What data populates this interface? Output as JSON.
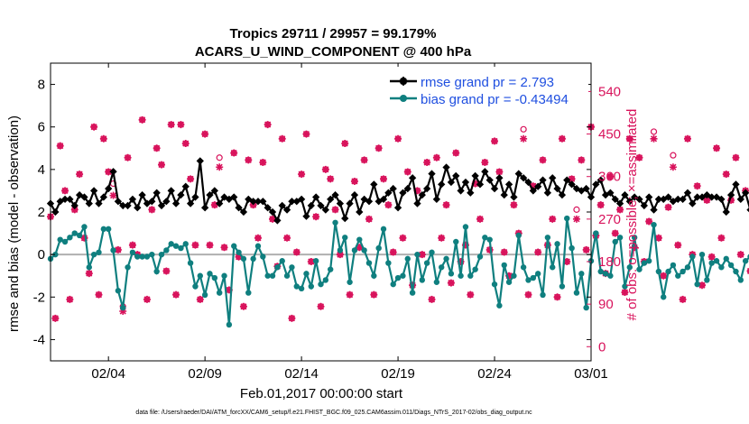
{
  "title_line1": "Tropics 29711 / 29957 = 99.179%",
  "title_line2": "ACARS_U_WIND_COMPONENT @ 400 hPa",
  "xlabel": "Feb.01,2017 00:00:00 start",
  "ylabel_left": "rmse and bias (model - observation)",
  "ylabel_right": "# of obs: o=possible; ×=assimilated",
  "footer": "data file: /Users/raeder/DAI/ATM_forcXX/CAM6_setup/f.e21.FHIST_BGC.f09_025.CAM6assim.011/Diags_NTrS_2017-02/obs_diag_output.nc",
  "legend": {
    "rmse_label": "rmse grand pr = 2.793",
    "bias_label": "bias grand pr = -0.43494"
  },
  "colors": {
    "rmse": "#000000",
    "bias": "#0f7f7f",
    "obs": "#d8125b",
    "legend_text": "#1f4fe0",
    "zero_line": "#b0b0b0"
  },
  "chart_data": {
    "type": "line",
    "x_start_day": 1,
    "x_end_day": 29,
    "x_step_days": 0.25,
    "xticks": [
      {
        "day": 4,
        "label": "02/04"
      },
      {
        "day": 9,
        "label": "02/09"
      },
      {
        "day": 14,
        "label": "02/14"
      },
      {
        "day": 19,
        "label": "02/19"
      },
      {
        "day": 24,
        "label": "02/24"
      },
      {
        "day": 29,
        "label": "03/01"
      }
    ],
    "ylim_left": [
      -5,
      9
    ],
    "yticks_left": [
      -4,
      -2,
      0,
      2,
      4,
      6,
      8
    ],
    "ylim_right": [
      -30,
      600
    ],
    "yticks_right": [
      0,
      90,
      180,
      270,
      360,
      450,
      540
    ],
    "series": [
      {
        "name": "rmse",
        "axis": "left",
        "values": [
          2.4,
          2.0,
          2.5,
          2.6,
          2.6,
          2.3,
          2.8,
          2.7,
          2.4,
          3.0,
          2.4,
          2.7,
          3.1,
          3.9,
          2.5,
          2.3,
          2.3,
          2.6,
          2.2,
          2.8,
          2.4,
          2.5,
          2.9,
          2.3,
          2.5,
          3.0,
          2.4,
          2.8,
          3.2,
          2.4,
          2.7,
          4.4,
          2.2,
          2.8,
          3.0,
          2.4,
          2.7,
          2.6,
          2.7,
          2.2,
          2.0,
          2.6,
          2.5,
          2.5,
          2.5,
          2.2,
          2.0,
          1.6,
          2.3,
          2.1,
          2.5,
          2.5,
          2.6,
          1.8,
          2.3,
          2.7,
          2.3,
          2.1,
          2.6,
          2.8,
          2.4,
          1.7,
          2.4,
          2.8,
          2.0,
          2.6,
          2.5,
          3.3,
          2.5,
          2.6,
          2.9,
          3.1,
          2.2,
          2.9,
          3.1,
          3.6,
          2.4,
          2.8,
          3.1,
          3.8,
          2.6,
          3.3,
          4.1,
          3.4,
          3.7,
          3.0,
          3.4,
          2.9,
          3.7,
          3.3,
          3.9,
          3.5,
          3.1,
          3.6,
          2.8,
          3.3,
          2.7,
          3.8,
          3.6,
          3.4,
          3.0,
          3.2,
          3.5,
          2.9,
          3.6,
          3.1,
          2.8,
          3.5,
          3.3,
          3.1,
          3.0,
          3.1,
          2.7,
          3.3,
          3.5,
          2.8,
          2.9,
          2.6,
          2.4,
          2.8,
          2.5,
          2.7,
          2.6,
          2.3,
          2.7,
          2.1,
          2.6,
          2.6,
          2.7,
          2.5,
          2.6,
          2.6,
          2.9,
          2.4,
          2.7,
          2.7,
          2.8,
          2.7,
          2.7,
          2.6,
          2.0,
          2.8,
          3.3,
          2.6,
          2.9,
          2.1,
          2.6,
          2.8,
          2.5,
          2.2,
          2.1
        ]
      },
      {
        "name": "bias",
        "axis": "left",
        "values": [
          -0.2,
          0.0,
          0.7,
          0.6,
          0.8,
          1.0,
          0.9,
          1.3,
          -0.6,
          0.0,
          0.1,
          1.2,
          1.2,
          0.2,
          -1.7,
          -2.5,
          -0.6,
          0.1,
          -0.1,
          -0.1,
          -0.1,
          0.0,
          -0.8,
          0.0,
          0.2,
          0.5,
          0.4,
          0.3,
          0.5,
          -0.4,
          -1.5,
          -1.0,
          -1.9,
          -0.9,
          -1.1,
          -1.8,
          -1.0,
          -3.3,
          0.4,
          0.1,
          -0.2,
          -1.8,
          -0.2,
          0.4,
          -0.1,
          -1.0,
          -1.0,
          -0.6,
          -0.3,
          -1.0,
          -0.6,
          -1.5,
          -1.6,
          -0.9,
          -1.5,
          -0.3,
          -1.4,
          -1.2,
          -0.7,
          1.5,
          0.2,
          0.8,
          -1.3,
          0.2,
          0.7,
          0.2,
          -0.4,
          -1.0,
          0.3,
          1.2,
          -0.4,
          -1.4,
          -1.1,
          -1.0,
          -0.2,
          -1.8,
          0.0,
          -1.2,
          -0.4,
          0.1,
          -1.3,
          -0.6,
          -0.2,
          -0.9,
          0.6,
          -1.0,
          1.3,
          -1.0,
          -0.7,
          -0.1,
          0.8,
          0.7,
          -1.4,
          -2.4,
          -0.5,
          -1.3,
          -1.0,
          0.9,
          -0.6,
          -1.2,
          -1.1,
          -0.9,
          -1.9,
          0.8,
          -0.6,
          0.5,
          -1.5,
          1.7,
          0.3,
          -1.8,
          -0.9,
          -2.5,
          -0.3,
          1.0,
          -0.8,
          -0.9,
          -1.0,
          0.6,
          0.8,
          -1.5,
          -0.6,
          0.8,
          -0.7,
          -0.4,
          -0.3,
          1.4,
          -0.8,
          -2.0,
          -0.8,
          -0.5,
          -1.0,
          -0.8,
          -0.6,
          -0.1,
          -1.4,
          0.0,
          -1.2,
          -0.4,
          -0.3,
          -0.6,
          -0.2,
          -0.5,
          -0.8,
          -1.2,
          -0.3,
          -0.1,
          0.5,
          -0.3,
          -0.9,
          -2.0,
          0.3,
          0.4
        ]
      },
      {
        "name": "obs_possible",
        "axis": "right",
        "values": [
          275,
          60,
          425,
          330,
          100,
          290,
          365,
          230,
          155,
          465,
          110,
          440,
          370,
          345,
          205,
          85,
          400,
          215,
          195,
          480,
          100,
          290,
          420,
          385,
          160,
          470,
          110,
          470,
          430,
          355,
          215,
          100,
          450,
          215,
          300,
          400,
          210,
          120,
          410,
          190,
          85,
          395,
          300,
          230,
          390,
          470,
          270,
          170,
          440,
          230,
          60,
          200,
          365,
          450,
          180,
          275,
          85,
          375,
          355,
          290,
          195,
          430,
          110,
          350,
          210,
          395,
          270,
          110,
          420,
          355,
          300,
          200,
          440,
          230,
          370,
          130,
          330,
          195,
          390,
          100,
          400,
          230,
          300,
          135,
          410,
          180,
          215,
          110,
          345,
          270,
          390,
          205,
          435,
          370,
          200,
          150,
          300,
          240,
          460,
          110,
          340,
          200,
          395,
          215,
          270,
          105,
          440,
          180,
          355,
          290,
          395,
          205,
          465,
          235,
          300,
          155,
          360,
          240,
          290,
          115,
          440,
          210,
          400,
          180,
          265,
          455,
          230,
          150,
          295,
          405,
          215,
          100,
          440,
          195,
          340,
          130,
          310,
          190,
          420,
          230,
          365,
          310,
          400,
          195,
          330,
          160,
          340,
          90,
          0,
          450
        ]
      },
      {
        "name": "obs_assimilated",
        "axis": "right",
        "values": [
          275,
          60,
          425,
          330,
          100,
          290,
          365,
          230,
          155,
          465,
          110,
          440,
          370,
          320,
          205,
          75,
          400,
          215,
          195,
          480,
          100,
          290,
          420,
          385,
          160,
          470,
          110,
          470,
          430,
          355,
          215,
          100,
          450,
          215,
          300,
          380,
          210,
          120,
          410,
          190,
          85,
          395,
          300,
          230,
          390,
          470,
          270,
          170,
          440,
          230,
          60,
          200,
          365,
          450,
          180,
          275,
          85,
          375,
          355,
          290,
          195,
          430,
          110,
          350,
          210,
          395,
          270,
          110,
          420,
          355,
          300,
          200,
          440,
          230,
          370,
          130,
          330,
          195,
          390,
          100,
          400,
          230,
          300,
          135,
          410,
          180,
          215,
          110,
          345,
          270,
          390,
          205,
          435,
          370,
          200,
          150,
          300,
          240,
          440,
          110,
          340,
          200,
          395,
          215,
          270,
          105,
          440,
          180,
          355,
          270,
          395,
          205,
          465,
          235,
          300,
          155,
          360,
          240,
          290,
          115,
          440,
          210,
          400,
          180,
          265,
          440,
          230,
          150,
          295,
          380,
          215,
          100,
          440,
          195,
          340,
          130,
          310,
          190,
          420,
          230,
          365,
          310,
          400,
          195,
          330,
          160,
          340,
          90,
          0,
          450
        ]
      }
    ]
  }
}
